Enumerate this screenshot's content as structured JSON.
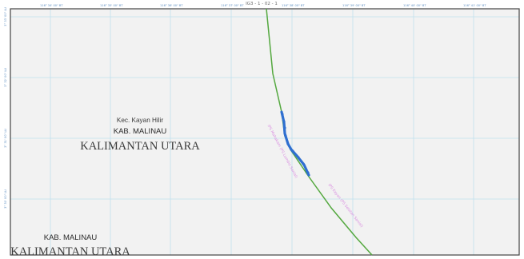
{
  "map": {
    "sheet_code": "IG3 - 1 - 02 - 1",
    "top_ticks": [
      "116° 34' 00\" BT",
      "116° 35' 00\" BT",
      "116° 36' 00\" BT",
      "116° 37' 00\" BT",
      "116° 38' 00\" BT",
      "116° 39' 00\" BT",
      "116° 40' 00\" BT",
      "116° 41' 00\" BT"
    ],
    "left_ticks": [
      "3° 33' 00\" LU",
      "3° 32' 00\" LU",
      "3° 31' 00\" LU",
      "3° 30' 00\" LU"
    ],
    "labels": {
      "kec_1": "Kec. Kayan Hilir",
      "kab_1": "KAB. MALINAU",
      "prov_1": "KALIMANTAN UTARA",
      "kab_2": "KAB. MALINAU",
      "prov_2": "KALIMANTAN UTARA"
    },
    "segments": {
      "left": "IPS Mahakam (PS Lumbis Sanial)",
      "right": "IPS Kayan (PS Selatan Sanial)"
    },
    "colors": {
      "background": "#f2f2f2",
      "grid": "#bfe0ee",
      "frame": "#444444",
      "route_green": "#54a83f",
      "route_blue": "#2f6fd0",
      "segment_label": "#d98ee0"
    }
  }
}
